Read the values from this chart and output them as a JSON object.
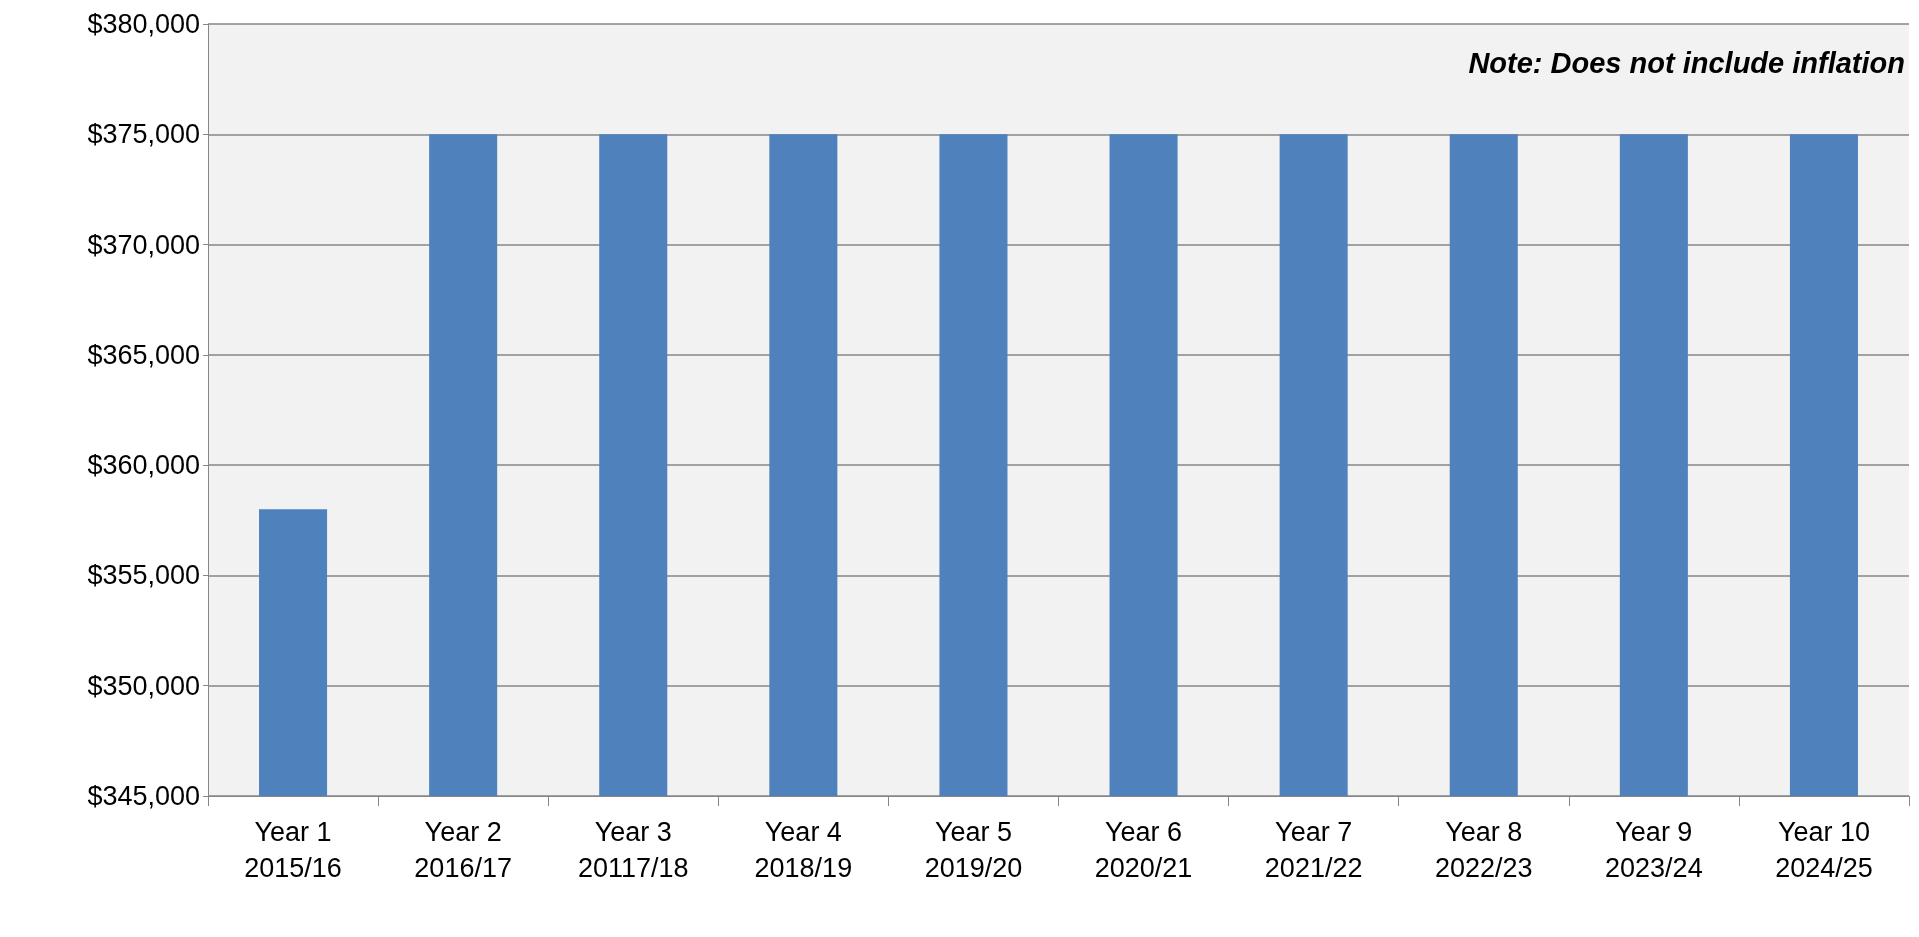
{
  "chart_data": {
    "type": "bar",
    "categories": [
      "Year 1\n2015/16",
      "Year 2\n2016/17",
      "Year 3\n20117/18",
      "Year 4\n2018/19",
      "Year 5\n2019/20",
      "Year 6\n2020/21",
      "Year 7\n2021/22",
      "Year 8\n2022/23",
      "Year 9\n2023/24",
      "Year 10\n2024/25"
    ],
    "values": [
      358000,
      375000,
      375000,
      375000,
      375000,
      375000,
      375000,
      375000,
      375000,
      375000
    ],
    "color": "#4f81bd",
    "ylim": [
      345000,
      380000
    ],
    "yticks": [
      {
        "value": 345000,
        "label": "$345,000"
      },
      {
        "value": 350000,
        "label": "$350,000"
      },
      {
        "value": 355000,
        "label": "$355,000"
      },
      {
        "value": 360000,
        "label": "$360,000"
      },
      {
        "value": 365000,
        "label": "$365,000"
      },
      {
        "value": 370000,
        "label": "$370,000"
      },
      {
        "value": 375000,
        "label": "$375,000"
      },
      {
        "value": 380000,
        "label": "$380,000"
      }
    ],
    "grid": "y",
    "annotations": [
      "Note: Does not include inflation"
    ]
  }
}
